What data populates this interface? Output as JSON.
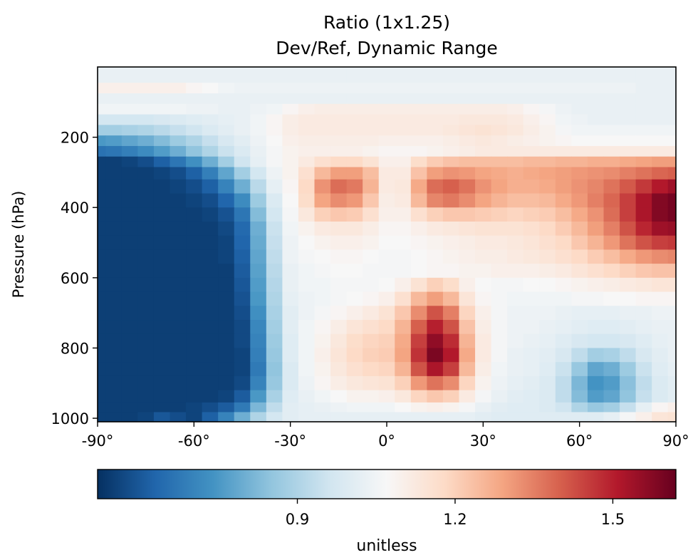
{
  "chart_data": {
    "type": "heatmap",
    "title": "Ratio (1x1.25)",
    "subtitle": "Dev/Ref, Dynamic Range",
    "xlabel": "",
    "ylabel": "Pressure (hPa)",
    "x_ticks": [
      -90,
      -60,
      -30,
      0,
      30,
      60,
      90
    ],
    "x_tick_labels": [
      "-90°",
      "-60°",
      "-30°",
      "0°",
      "30°",
      "60°",
      "90°"
    ],
    "xlim": [
      -90,
      90
    ],
    "y_ticks": [
      200,
      400,
      600,
      800,
      1000
    ],
    "y_tick_labels": [
      "200",
      "400",
      "600",
      "800",
      "1000"
    ],
    "ylim": [
      1010,
      0
    ],
    "colorbar": {
      "label": "unitless",
      "colormap": "RdBu_r",
      "vmin": 0.52,
      "vmax": 1.62,
      "ticks": [
        0.9,
        1.2,
        1.5
      ],
      "tick_labels": [
        "0.9",
        "1.2",
        "1.5"
      ],
      "orientation": "horizontal",
      "stops": [
        "#053061",
        "#2166ac",
        "#4393c3",
        "#92c5de",
        "#d1e5f0",
        "#f7f7f7",
        "#fddbc7",
        "#f4a582",
        "#d6604d",
        "#b2182b",
        "#67001f"
      ]
    },
    "lat": [
      -90,
      -85,
      -80,
      -75,
      -70,
      -65,
      -60,
      -55,
      -50,
      -45,
      -40,
      -35,
      -30,
      -25,
      -20,
      -15,
      -10,
      -5,
      0,
      5,
      10,
      15,
      20,
      25,
      30,
      35,
      40,
      45,
      50,
      55,
      60,
      65,
      70,
      75,
      80,
      85,
      90
    ],
    "pressure": [
      30,
      60,
      90,
      120,
      150,
      180,
      210,
      240,
      270,
      300,
      340,
      380,
      420,
      460,
      500,
      540,
      580,
      620,
      660,
      700,
      740,
      780,
      820,
      860,
      900,
      940,
      970,
      995
    ],
    "values": [
      [
        1.03,
        1.03,
        1.03,
        1.03,
        1.03,
        1.03,
        1.03,
        1.03,
        1.03,
        1.03,
        1.03,
        1.03,
        1.03,
        1.03,
        1.03,
        1.03,
        1.03,
        1.03,
        1.03,
        1.03,
        1.03,
        1.03,
        1.03,
        1.03,
        1.03,
        1.03,
        1.03,
        1.03,
        1.03,
        1.03,
        1.03,
        1.03,
        1.03,
        1.03,
        1.03,
        1.03,
        1.03
      ],
      [
        1.1,
        1.1,
        1.1,
        1.1,
        1.1,
        1.1,
        1.08,
        1.07,
        1.05,
        1.04,
        1.04,
        1.04,
        1.04,
        1.04,
        1.04,
        1.04,
        1.04,
        1.04,
        1.04,
        1.04,
        1.04,
        1.04,
        1.04,
        1.04,
        1.04,
        1.04,
        1.04,
        1.04,
        1.04,
        1.04,
        1.04,
        1.04,
        1.04,
        1.04,
        1.03,
        1.03,
        1.03
      ],
      [
        1.03,
        1.03,
        1.03,
        1.03,
        1.03,
        1.03,
        1.03,
        1.03,
        1.03,
        1.03,
        1.03,
        1.03,
        1.03,
        1.03,
        1.03,
        1.03,
        1.03,
        1.03,
        1.03,
        1.03,
        1.03,
        1.03,
        1.03,
        1.03,
        1.03,
        1.03,
        1.03,
        1.03,
        1.03,
        1.03,
        1.03,
        1.03,
        1.03,
        1.03,
        1.03,
        1.03,
        1.03
      ],
      [
        1.05,
        1.05,
        1.05,
        1.05,
        1.05,
        1.05,
        1.04,
        1.04,
        1.03,
        1.03,
        1.04,
        1.05,
        1.08,
        1.1,
        1.11,
        1.11,
        1.11,
        1.11,
        1.11,
        1.11,
        1.11,
        1.11,
        1.11,
        1.11,
        1.11,
        1.11,
        1.1,
        1.08,
        1.06,
        1.04,
        1.03,
        1.03,
        1.03,
        1.03,
        1.03,
        1.03,
        1.03
      ],
      [
        0.97,
        0.97,
        0.97,
        0.97,
        0.98,
        0.99,
        1.0,
        1.01,
        1.02,
        1.03,
        1.05,
        1.08,
        1.11,
        1.12,
        1.12,
        1.12,
        1.12,
        1.12,
        1.12,
        1.12,
        1.12,
        1.12,
        1.12,
        1.13,
        1.13,
        1.13,
        1.12,
        1.1,
        1.08,
        1.05,
        1.04,
        1.03,
        1.03,
        1.03,
        1.03,
        1.03,
        1.03
      ],
      [
        0.88,
        0.88,
        0.89,
        0.9,
        0.92,
        0.94,
        0.96,
        0.99,
        1.01,
        1.03,
        1.05,
        1.08,
        1.11,
        1.12,
        1.12,
        1.12,
        1.12,
        1.12,
        1.12,
        1.12,
        1.12,
        1.12,
        1.13,
        1.14,
        1.15,
        1.14,
        1.13,
        1.11,
        1.09,
        1.06,
        1.05,
        1.05,
        1.05,
        1.05,
        1.05,
        1.05,
        1.05
      ],
      [
        0.75,
        0.76,
        0.78,
        0.8,
        0.83,
        0.87,
        0.9,
        0.94,
        0.98,
        1.01,
        1.04,
        1.07,
        1.1,
        1.11,
        1.11,
        1.11,
        1.11,
        1.11,
        1.1,
        1.1,
        1.1,
        1.1,
        1.11,
        1.12,
        1.13,
        1.12,
        1.11,
        1.1,
        1.09,
        1.08,
        1.07,
        1.07,
        1.07,
        1.07,
        1.07,
        1.07,
        1.07
      ],
      [
        0.66,
        0.67,
        0.69,
        0.72,
        0.76,
        0.8,
        0.85,
        0.9,
        0.95,
        0.99,
        1.03,
        1.06,
        1.09,
        1.1,
        1.1,
        1.1,
        1.1,
        1.09,
        1.08,
        1.08,
        1.08,
        1.09,
        1.1,
        1.11,
        1.12,
        1.12,
        1.12,
        1.12,
        1.12,
        1.12,
        1.12,
        1.12,
        1.12,
        1.12,
        1.12,
        1.12,
        1.12
      ],
      [
        0.55,
        0.55,
        0.56,
        0.58,
        0.62,
        0.67,
        0.73,
        0.8,
        0.88,
        0.96,
        1.02,
        1.06,
        1.09,
        1.12,
        1.16,
        1.18,
        1.18,
        1.15,
        1.1,
        1.1,
        1.17,
        1.21,
        1.23,
        1.24,
        1.24,
        1.24,
        1.24,
        1.25,
        1.25,
        1.26,
        1.26,
        1.27,
        1.27,
        1.28,
        1.29,
        1.3,
        1.3
      ],
      [
        0.55,
        0.55,
        0.55,
        0.55,
        0.56,
        0.58,
        0.62,
        0.69,
        0.78,
        0.88,
        0.97,
        1.04,
        1.09,
        1.16,
        1.25,
        1.3,
        1.3,
        1.24,
        1.12,
        1.12,
        1.23,
        1.3,
        1.32,
        1.31,
        1.29,
        1.28,
        1.27,
        1.28,
        1.29,
        1.3,
        1.31,
        1.32,
        1.33,
        1.35,
        1.37,
        1.39,
        1.4
      ],
      [
        0.55,
        0.55,
        0.55,
        0.55,
        0.55,
        0.56,
        0.58,
        0.62,
        0.7,
        0.8,
        0.92,
        1.02,
        1.08,
        1.18,
        1.32,
        1.38,
        1.36,
        1.26,
        1.12,
        1.13,
        1.28,
        1.38,
        1.4,
        1.37,
        1.32,
        1.29,
        1.27,
        1.27,
        1.28,
        1.3,
        1.32,
        1.34,
        1.37,
        1.41,
        1.46,
        1.51,
        1.54
      ],
      [
        0.55,
        0.55,
        0.55,
        0.55,
        0.55,
        0.55,
        0.56,
        0.58,
        0.63,
        0.72,
        0.87,
        0.99,
        1.07,
        1.17,
        1.29,
        1.33,
        1.31,
        1.22,
        1.11,
        1.12,
        1.25,
        1.34,
        1.36,
        1.33,
        1.29,
        1.26,
        1.24,
        1.24,
        1.25,
        1.28,
        1.31,
        1.35,
        1.39,
        1.45,
        1.52,
        1.58,
        1.6
      ],
      [
        0.55,
        0.55,
        0.55,
        0.55,
        0.55,
        0.55,
        0.55,
        0.56,
        0.59,
        0.67,
        0.83,
        0.97,
        1.06,
        1.13,
        1.2,
        1.22,
        1.21,
        1.16,
        1.1,
        1.1,
        1.16,
        1.2,
        1.22,
        1.22,
        1.21,
        1.2,
        1.19,
        1.2,
        1.21,
        1.24,
        1.28,
        1.32,
        1.38,
        1.45,
        1.52,
        1.58,
        1.6
      ],
      [
        0.55,
        0.55,
        0.55,
        0.55,
        0.55,
        0.55,
        0.55,
        0.55,
        0.57,
        0.64,
        0.8,
        0.95,
        1.05,
        1.09,
        1.12,
        1.13,
        1.13,
        1.11,
        1.08,
        1.08,
        1.1,
        1.12,
        1.13,
        1.14,
        1.15,
        1.15,
        1.15,
        1.16,
        1.18,
        1.21,
        1.25,
        1.3,
        1.35,
        1.42,
        1.49,
        1.54,
        1.55
      ],
      [
        0.55,
        0.55,
        0.55,
        0.55,
        0.55,
        0.55,
        0.55,
        0.55,
        0.56,
        0.63,
        0.79,
        0.94,
        1.04,
        1.07,
        1.09,
        1.1,
        1.1,
        1.09,
        1.07,
        1.07,
        1.08,
        1.09,
        1.1,
        1.11,
        1.12,
        1.12,
        1.13,
        1.14,
        1.16,
        1.18,
        1.22,
        1.26,
        1.31,
        1.37,
        1.42,
        1.45,
        1.46
      ],
      [
        0.55,
        0.55,
        0.55,
        0.55,
        0.55,
        0.55,
        0.55,
        0.55,
        0.56,
        0.62,
        0.78,
        0.93,
        1.04,
        1.06,
        1.07,
        1.08,
        1.08,
        1.07,
        1.06,
        1.06,
        1.07,
        1.08,
        1.09,
        1.1,
        1.11,
        1.11,
        1.12,
        1.13,
        1.14,
        1.16,
        1.18,
        1.21,
        1.24,
        1.28,
        1.31,
        1.33,
        1.34
      ],
      [
        0.55,
        0.55,
        0.55,
        0.55,
        0.55,
        0.55,
        0.55,
        0.55,
        0.55,
        0.61,
        0.77,
        0.92,
        1.03,
        1.05,
        1.06,
        1.07,
        1.07,
        1.06,
        1.06,
        1.06,
        1.07,
        1.08,
        1.08,
        1.09,
        1.09,
        1.1,
        1.1,
        1.1,
        1.11,
        1.12,
        1.14,
        1.16,
        1.18,
        1.2,
        1.22,
        1.23,
        1.23
      ],
      [
        0.55,
        0.55,
        0.55,
        0.55,
        0.55,
        0.55,
        0.55,
        0.55,
        0.55,
        0.6,
        0.76,
        0.91,
        1.03,
        1.05,
        1.05,
        1.06,
        1.06,
        1.06,
        1.07,
        1.1,
        1.15,
        1.2,
        1.17,
        1.1,
        1.07,
        1.06,
        1.06,
        1.07,
        1.07,
        1.08,
        1.09,
        1.1,
        1.11,
        1.12,
        1.13,
        1.14,
        1.14
      ],
      [
        0.55,
        0.55,
        0.55,
        0.55,
        0.55,
        0.55,
        0.55,
        0.55,
        0.55,
        0.59,
        0.75,
        0.9,
        1.02,
        1.04,
        1.05,
        1.06,
        1.07,
        1.08,
        1.1,
        1.16,
        1.25,
        1.3,
        1.25,
        1.14,
        1.08,
        1.06,
        1.05,
        1.05,
        1.05,
        1.05,
        1.06,
        1.06,
        1.07,
        1.07,
        1.08,
        1.08,
        1.08
      ],
      [
        0.55,
        0.55,
        0.55,
        0.55,
        0.55,
        0.55,
        0.55,
        0.55,
        0.55,
        0.58,
        0.73,
        0.89,
        1.01,
        1.04,
        1.06,
        1.08,
        1.1,
        1.12,
        1.15,
        1.22,
        1.33,
        1.42,
        1.35,
        1.19,
        1.1,
        1.06,
        1.04,
        1.04,
        1.04,
        1.03,
        1.02,
        1.02,
        1.02,
        1.03,
        1.03,
        1.04,
        1.04
      ],
      [
        0.55,
        0.55,
        0.55,
        0.55,
        0.55,
        0.55,
        0.55,
        0.55,
        0.55,
        0.57,
        0.71,
        0.88,
        1.01,
        1.05,
        1.08,
        1.11,
        1.14,
        1.16,
        1.18,
        1.26,
        1.4,
        1.5,
        1.42,
        1.23,
        1.11,
        1.06,
        1.04,
        1.04,
        1.03,
        1.02,
        1.01,
        1.0,
        1.0,
        1.01,
        1.02,
        1.03,
        1.03
      ],
      [
        0.55,
        0.55,
        0.55,
        0.55,
        0.55,
        0.55,
        0.55,
        0.55,
        0.55,
        0.57,
        0.7,
        0.87,
        1.0,
        1.05,
        1.09,
        1.13,
        1.17,
        1.19,
        1.2,
        1.28,
        1.45,
        1.56,
        1.48,
        1.26,
        1.12,
        1.06,
        1.04,
        1.03,
        1.02,
        1.0,
        0.98,
        0.97,
        0.97,
        0.98,
        1.0,
        1.02,
        1.03
      ],
      [
        0.55,
        0.55,
        0.55,
        0.55,
        0.55,
        0.55,
        0.55,
        0.55,
        0.55,
        0.56,
        0.69,
        0.86,
        1.0,
        1.05,
        1.1,
        1.14,
        1.18,
        1.2,
        1.21,
        1.29,
        1.47,
        1.59,
        1.51,
        1.28,
        1.12,
        1.06,
        1.03,
        1.02,
        1.01,
        0.98,
        0.93,
        0.88,
        0.89,
        0.93,
        0.98,
        1.01,
        1.03
      ],
      [
        0.55,
        0.55,
        0.55,
        0.55,
        0.55,
        0.55,
        0.55,
        0.55,
        0.55,
        0.56,
        0.68,
        0.85,
        0.99,
        1.05,
        1.09,
        1.13,
        1.16,
        1.18,
        1.19,
        1.26,
        1.42,
        1.52,
        1.45,
        1.25,
        1.11,
        1.05,
        1.03,
        1.02,
        1.0,
        0.95,
        0.86,
        0.78,
        0.8,
        0.87,
        0.95,
        1.0,
        1.02
      ],
      [
        0.55,
        0.55,
        0.55,
        0.55,
        0.55,
        0.55,
        0.55,
        0.55,
        0.55,
        0.57,
        0.7,
        0.86,
        0.99,
        1.04,
        1.08,
        1.11,
        1.13,
        1.14,
        1.15,
        1.2,
        1.31,
        1.37,
        1.33,
        1.19,
        1.09,
        1.04,
        1.02,
        1.01,
        0.99,
        0.93,
        0.82,
        0.74,
        0.76,
        0.84,
        0.93,
        0.99,
        1.01
      ],
      [
        0.55,
        0.55,
        0.55,
        0.55,
        0.55,
        0.55,
        0.55,
        0.55,
        0.56,
        0.61,
        0.75,
        0.89,
        1.0,
        1.03,
        1.05,
        1.07,
        1.09,
        1.09,
        1.1,
        1.13,
        1.19,
        1.22,
        1.2,
        1.12,
        1.06,
        1.03,
        1.01,
        1.0,
        0.99,
        0.93,
        0.83,
        0.76,
        0.78,
        0.85,
        0.94,
        0.99,
        1.01
      ],
      [
        0.55,
        0.55,
        0.55,
        0.55,
        0.55,
        0.55,
        0.56,
        0.58,
        0.61,
        0.68,
        0.82,
        0.93,
        1.01,
        1.02,
        1.03,
        1.04,
        1.05,
        1.05,
        1.05,
        1.07,
        1.09,
        1.1,
        1.09,
        1.06,
        1.03,
        1.01,
        1.0,
        1.0,
        0.99,
        0.96,
        0.9,
        0.86,
        0.88,
        0.94,
        1.02,
        1.08,
        1.1
      ],
      [
        0.55,
        0.55,
        0.55,
        0.56,
        0.6,
        0.58,
        0.56,
        0.62,
        0.7,
        0.8,
        0.9,
        0.97,
        1.01,
        1.02,
        1.02,
        1.02,
        1.02,
        1.02,
        1.02,
        1.02,
        1.02,
        1.02,
        1.02,
        1.02,
        1.01,
        1.0,
        1.0,
        1.0,
        1.0,
        1.0,
        1.0,
        1.0,
        1.02,
        1.06,
        1.1,
        1.14,
        1.15
      ]
    ]
  }
}
